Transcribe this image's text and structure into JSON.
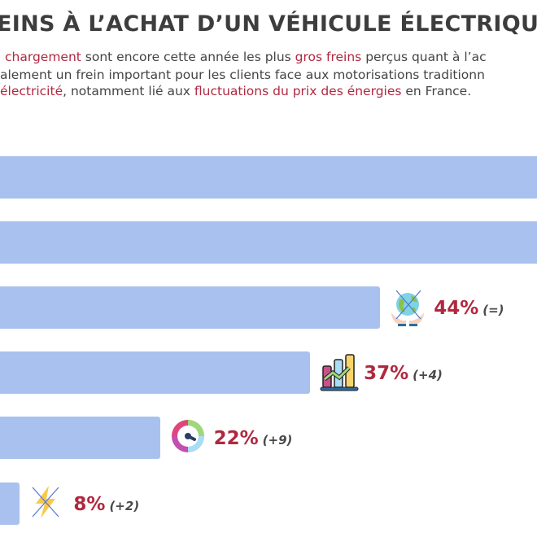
{
  "title": "EINS À L’ACHAT D’UN VÉHICULE ÉLECTRIQU",
  "intro": [
    [
      {
        "t": "chargement",
        "hl": true
      },
      {
        "t": " sont encore cette année les plus ",
        "hl": false
      },
      {
        "t": "gros freins",
        "hl": true
      },
      {
        "t": " perçus quant à l’ac",
        "hl": false
      }
    ],
    [
      {
        "t": "alement un frein important pour les clients face aux motorisations traditionn",
        "hl": false
      }
    ],
    [
      {
        "t": "électricité",
        "hl": true
      },
      {
        "t": ", notamment lié aux ",
        "hl": false
      },
      {
        "t": "fluctuations du prix des énergies",
        "hl": true
      },
      {
        "t": " en France.",
        "hl": false
      }
    ]
  ],
  "colors": {
    "bar": "#a9c1ee",
    "accent": "#b0283f",
    "text": "#3d3d3d"
  },
  "chart_data": {
    "type": "bar",
    "orientation": "horizontal",
    "unit": "%",
    "series": [
      {
        "values": [
          null,
          null,
          44,
          37,
          22,
          8
        ],
        "changes": [
          null,
          null,
          "(=)",
          "(+4)",
          "(+9)",
          "(+2)"
        ],
        "labels": [
          null,
          null,
          "44%",
          "37%",
          "22%",
          "8%"
        ]
      }
    ],
    "icons": [
      null,
      null,
      "earth-in-hands-crossed-icon",
      "rising-chart-icon",
      "gauge-icon",
      "lightning-crossed-icon"
    ],
    "grid": false
  }
}
